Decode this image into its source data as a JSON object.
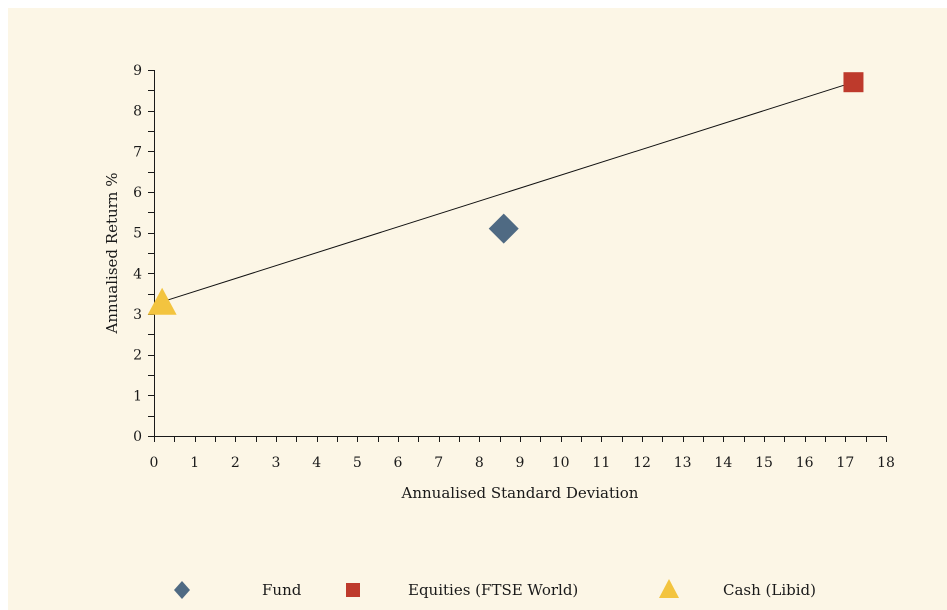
{
  "chart_data": {
    "type": "scatter",
    "xlabel": "Annualised Standard Deviation",
    "ylabel": "Annualised Return %",
    "xlim": [
      0,
      18
    ],
    "ylim": [
      0,
      9
    ],
    "x_tick_labels": [
      "0",
      "1",
      "2",
      "3",
      "4",
      "5",
      "6",
      "7",
      "8",
      "9",
      "10",
      "11",
      "12",
      "13",
      "14",
      "15",
      "16",
      "17",
      "18"
    ],
    "y_tick_labels": [
      "0",
      "1",
      "2",
      "3",
      "4",
      "5",
      "6",
      "7",
      "8",
      "9"
    ],
    "grid": false,
    "legend_position": "bottom",
    "series": [
      {
        "name": "Fund",
        "marker": "diamond",
        "color": "#4f6a83",
        "points": [
          {
            "x": 8.6,
            "y": 5.1
          }
        ]
      },
      {
        "name": "Equities (FTSE World)",
        "marker": "square",
        "color": "#be3a2c",
        "points": [
          {
            "x": 17.2,
            "y": 8.7
          }
        ]
      },
      {
        "name": "Cash (Libid)",
        "marker": "triangle",
        "color": "#f3c43f",
        "points": [
          {
            "x": 0.2,
            "y": 3.3
          }
        ]
      }
    ],
    "lines": [
      {
        "style": "solid",
        "color": "#111111",
        "points": [
          {
            "x": 0.2,
            "y": 3.3
          },
          {
            "x": 17.2,
            "y": 8.7
          }
        ]
      }
    ]
  },
  "colors": {
    "background": "#fcf6e6",
    "axis": "#1a1a1a"
  }
}
